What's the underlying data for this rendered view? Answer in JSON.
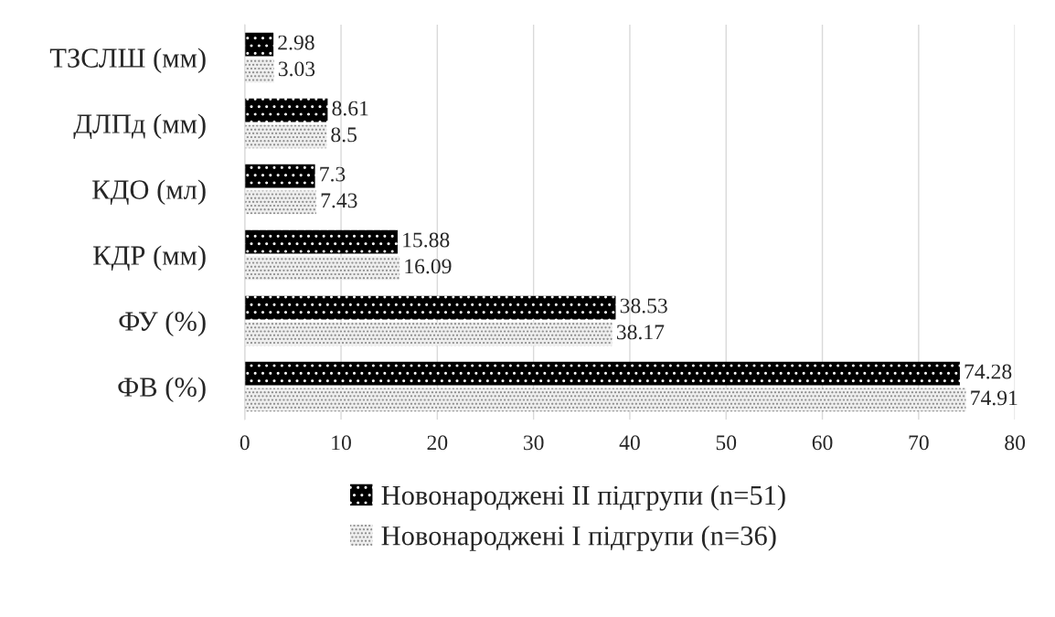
{
  "chart_data": {
    "type": "bar",
    "orientation": "horizontal",
    "categories": [
      "ТЗСЛШ (мм)",
      "ДЛПд (мм)",
      "КДО (мл)",
      "КДР (мм)",
      "ФУ (%)",
      "ФВ (%)"
    ],
    "series": [
      {
        "name": "Новонароджені II підгрупи (n=51)",
        "color": "#000000",
        "values": [
          2.98,
          8.61,
          7.3,
          15.88,
          38.53,
          74.28
        ]
      },
      {
        "name": "Новонароджені I підгрупи (n=36)",
        "color": "#eeeeee",
        "values": [
          3.03,
          8.5,
          7.43,
          16.09,
          38.17,
          74.91
        ]
      }
    ],
    "xlim": [
      0,
      80
    ],
    "xticks": [
      0,
      10,
      20,
      30,
      40,
      50,
      60,
      70,
      80
    ],
    "grid": "x",
    "legend": "bottom",
    "data_labels": true
  }
}
